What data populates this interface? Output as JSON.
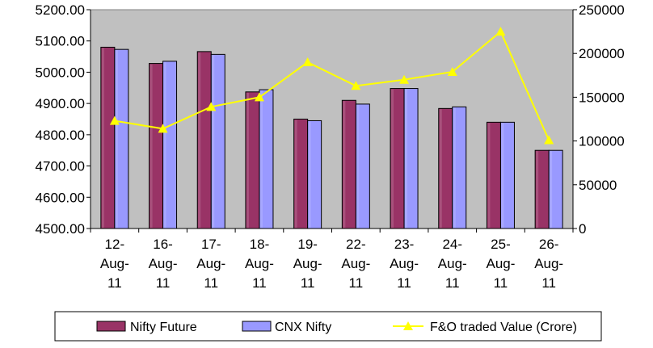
{
  "chart_data": {
    "type": "bar",
    "categories": [
      "12-Aug-11",
      "16-Aug-11",
      "17-Aug-11",
      "18-Aug-11",
      "19-Aug-11",
      "22-Aug-11",
      "23-Aug-11",
      "24-Aug-11",
      "25-Aug-11",
      "26-Aug-11"
    ],
    "category_lines": [
      [
        "12-",
        "Aug-",
        "11"
      ],
      [
        "16-",
        "Aug-",
        "11"
      ],
      [
        "17-",
        "Aug-",
        "11"
      ],
      [
        "18-",
        "Aug-",
        "11"
      ],
      [
        "19-",
        "Aug-",
        "11"
      ],
      [
        "22-",
        "Aug-",
        "11"
      ],
      [
        "23-",
        "Aug-",
        "11"
      ],
      [
        "24-",
        "Aug-",
        "11"
      ],
      [
        "25-",
        "Aug-",
        "11"
      ],
      [
        "26-",
        "Aug-",
        "11"
      ]
    ],
    "series": [
      {
        "name": "Nifty Future",
        "type": "bar",
        "axis": "left",
        "color": "#993366",
        "values": [
          5080,
          5028,
          5066,
          4937,
          4850,
          4910,
          4948,
          4884,
          4840,
          4750
        ]
      },
      {
        "name": "CNX Nifty",
        "type": "bar",
        "axis": "left",
        "color": "#9999ff",
        "values": [
          5073,
          5035,
          5057,
          4944,
          4845,
          4898,
          4948,
          4889,
          4840,
          4750
        ]
      },
      {
        "name": "F&O traded Value (Crore)",
        "type": "line",
        "axis": "right",
        "color": "#ffff00",
        "values": [
          123000,
          114000,
          139000,
          150000,
          190000,
          163000,
          170000,
          179000,
          225000,
          101000
        ]
      }
    ],
    "y_left": {
      "min": 4500,
      "max": 5200,
      "step": 100,
      "ticks": [
        "4500.00",
        "4600.00",
        "4700.00",
        "4800.00",
        "4900.00",
        "5000.00",
        "5100.00",
        "5200.00"
      ]
    },
    "y_right": {
      "min": 0,
      "max": 250000,
      "step": 50000,
      "ticks": [
        "0",
        "50000",
        "100000",
        "150000",
        "200000",
        "250000"
      ]
    },
    "plot_background": "#c0c0c0",
    "grid": false,
    "legend_position": "bottom"
  }
}
